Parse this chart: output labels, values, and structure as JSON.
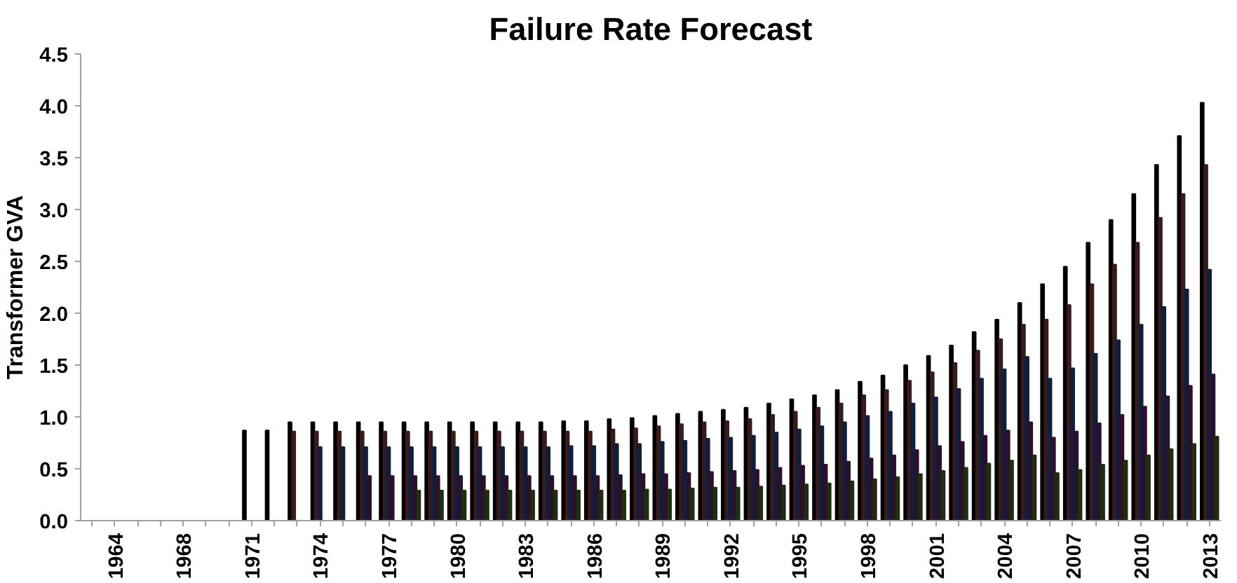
{
  "chart_data": {
    "type": "bar",
    "title": "Failure Rate Forecast",
    "ylabel": "Transformer GVA",
    "categories": [
      null,
      "1964",
      null,
      null,
      "1968",
      null,
      null,
      "1971",
      null,
      null,
      "1974",
      null,
      null,
      "1977",
      null,
      null,
      "1980",
      null,
      null,
      "1983",
      null,
      null,
      "1986",
      null,
      null,
      "1989",
      null,
      null,
      "1992",
      null,
      null,
      "1995",
      null,
      null,
      "1998",
      null,
      null,
      "2001",
      null,
      null,
      "2004",
      null,
      null,
      "2007",
      null,
      null,
      "2010",
      null,
      null,
      "2013"
    ],
    "ylim": [
      0,
      4.5
    ],
    "yticks": [
      {
        "value": 0,
        "label": "0.0"
      },
      0.5,
      {
        "value": 1,
        "label": "1.0"
      },
      1.5,
      {
        "value": 2,
        "label": "2.0"
      },
      2.5,
      {
        "value": 3,
        "label": "3.0"
      },
      3.5,
      {
        "value": 4,
        "label": "4.0"
      },
      4.5
    ],
    "grid": false,
    "series": [
      {
        "color": "#000000",
        "values": [
          null,
          null,
          null,
          null,
          null,
          null,
          null,
          0.87,
          0.87,
          0.95,
          0.95,
          0.95,
          0.95,
          0.95,
          0.95,
          0.95,
          0.95,
          0.95,
          0.95,
          0.95,
          0.95,
          0.96,
          0.96,
          0.98,
          0.99,
          1.01,
          1.03,
          1.05,
          1.07,
          1.09,
          1.13,
          1.17,
          1.21,
          1.26,
          1.34,
          1.4,
          1.5,
          1.59,
          1.69,
          1.82,
          1.94,
          2.1,
          2.28,
          2.45,
          2.68,
          2.9,
          3.15,
          3.43,
          3.71,
          4.03
        ]
      },
      {
        "color": "#3b1a1a",
        "values": [
          null,
          null,
          null,
          null,
          null,
          null,
          null,
          null,
          null,
          0.86,
          0.86,
          0.86,
          0.86,
          0.86,
          0.86,
          0.86,
          0.86,
          0.86,
          0.86,
          0.86,
          0.86,
          0.86,
          0.86,
          0.88,
          0.89,
          0.91,
          0.93,
          0.95,
          0.96,
          0.98,
          1.02,
          1.05,
          1.09,
          1.13,
          1.21,
          1.26,
          1.35,
          1.43,
          1.52,
          1.64,
          1.75,
          1.89,
          1.94,
          2.08,
          2.28,
          2.47,
          2.68,
          2.92,
          3.15,
          3.43
        ]
      },
      {
        "color": "#0f1f3d",
        "values": [
          null,
          null,
          null,
          null,
          null,
          null,
          null,
          null,
          null,
          null,
          0.71,
          0.71,
          0.71,
          0.71,
          0.71,
          0.71,
          0.71,
          0.71,
          0.71,
          0.71,
          0.71,
          0.72,
          0.72,
          0.74,
          0.74,
          0.76,
          0.77,
          0.79,
          0.8,
          0.82,
          0.85,
          0.88,
          0.91,
          0.95,
          1.01,
          1.05,
          1.13,
          1.19,
          1.27,
          1.37,
          1.46,
          1.58,
          1.37,
          1.47,
          1.61,
          1.74,
          1.89,
          2.06,
          2.23,
          2.42
        ]
      },
      {
        "color": "#2e0f2e",
        "values": [
          null,
          null,
          null,
          null,
          null,
          null,
          null,
          null,
          null,
          null,
          null,
          null,
          0.43,
          0.43,
          0.43,
          0.43,
          0.43,
          0.43,
          0.43,
          0.43,
          0.43,
          0.43,
          0.43,
          0.44,
          0.45,
          0.45,
          0.46,
          0.47,
          0.48,
          0.49,
          0.51,
          0.53,
          0.54,
          0.57,
          0.6,
          0.63,
          0.68,
          0.72,
          0.76,
          0.82,
          0.87,
          0.95,
          0.8,
          0.86,
          0.94,
          1.02,
          1.1,
          1.2,
          1.3,
          1.41
        ]
      },
      {
        "color": "#1f2e0f",
        "values": [
          null,
          null,
          null,
          null,
          null,
          null,
          null,
          null,
          null,
          null,
          null,
          null,
          null,
          null,
          0.29,
          0.29,
          0.29,
          0.29,
          0.29,
          0.29,
          0.29,
          0.29,
          0.29,
          0.29,
          0.3,
          0.3,
          0.31,
          0.32,
          0.32,
          0.33,
          0.34,
          0.35,
          0.36,
          0.38,
          0.4,
          0.42,
          0.45,
          0.48,
          0.51,
          0.55,
          0.58,
          0.63,
          0.46,
          0.49,
          0.54,
          0.58,
          0.63,
          0.69,
          0.74,
          0.81
        ]
      }
    ]
  }
}
